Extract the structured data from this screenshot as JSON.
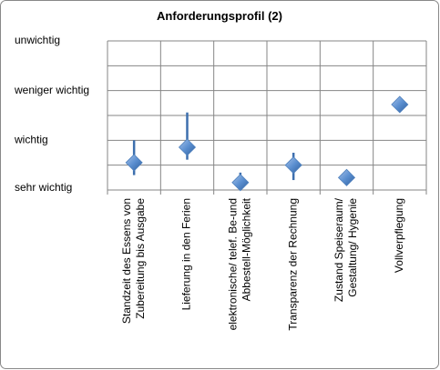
{
  "chart_data": {
    "type": "scatter",
    "title": "Anforderungsprofil (2)",
    "categories": [
      [
        "Standzeit des Essens von",
        "Zubereitung bis Ausgabe"
      ],
      [
        "Lieferung in den Ferien"
      ],
      [
        "elektronische/ telef. Be-und",
        "Abbestell-Möglichkeit"
      ],
      [
        "Transparenz der Rechnung"
      ],
      [
        "Zustand Speiseraum/",
        "Gestaltung/ Hygenie"
      ],
      [
        "Vollverpflegung"
      ]
    ],
    "values": [
      1.55,
      1.86,
      1.15,
      1.5,
      1.25,
      2.72
    ],
    "error_plus": [
      0.45,
      0.7,
      0.2,
      0.25,
      0.15,
      0
    ],
    "error_minus": [
      0.25,
      0.25,
      0.15,
      0.3,
      0.15,
      0
    ],
    "color": "#4f81bd",
    "error_color": "#3d6fae",
    "ylim": [
      1,
      4
    ],
    "yticks": [
      {
        "value": 1,
        "label": "sehr wichtig"
      },
      {
        "value": 2,
        "label": "wichtig"
      },
      {
        "value": 3,
        "label": "weniger wichtig"
      },
      {
        "value": 4,
        "label": "unwichtig"
      }
    ],
    "minor_yticks": [
      1.5,
      2.5,
      3.5
    ],
    "grid": true
  }
}
